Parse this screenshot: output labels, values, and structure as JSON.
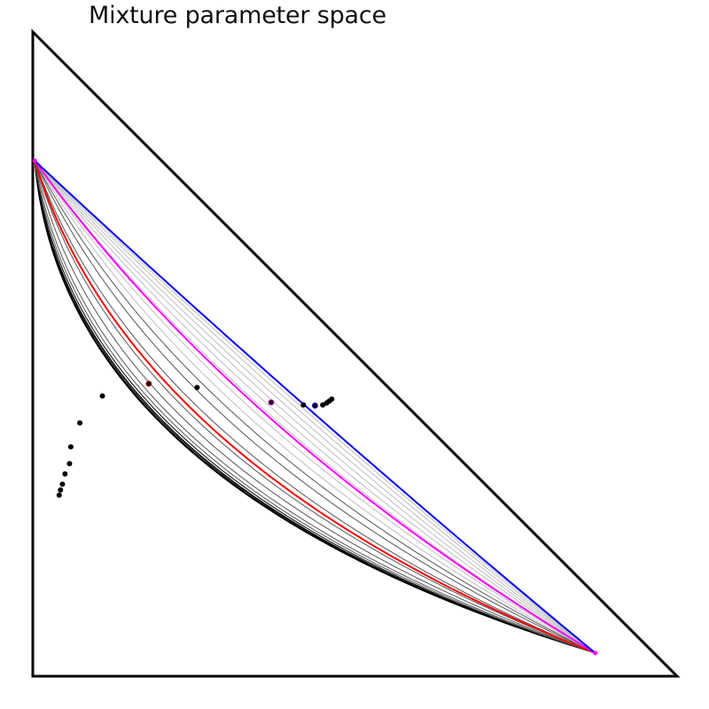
{
  "title": "Mixture parameter space",
  "chart_data": {
    "type": "line",
    "title": "Mixture parameter space",
    "xlabel": "",
    "ylabel": "",
    "xlim": [
      0,
      1
    ],
    "ylim": [
      0,
      1
    ],
    "grid": false,
    "legend": "none",
    "domain": "simplex (triangle with corners (0,0), (1,0), (0,1))",
    "endpoints": [
      [
        0.003,
        0.8
      ],
      [
        0.873,
        0.036
      ]
    ],
    "family": {
      "description": "curves joining the two endpoints, ordered from the bowed (lower-left) family to the nearly straight family",
      "curvature_parameters": [
        0.02,
        0.025,
        0.03,
        0.04,
        0.05,
        0.07,
        0.1,
        0.14,
        0.22,
        0.33,
        0.5,
        0.75,
        1.0,
        1.3,
        1.7,
        2.3,
        3.0,
        4.0,
        5.5,
        8.0,
        12.0
      ],
      "colors": {
        "dark": "#000000",
        "mid": "#555555",
        "light": "#bdbdbd"
      }
    },
    "series": [
      {
        "color": "#ff0000",
        "curvature": 0.4,
        "marker": [
          0.18,
          0.454
        ]
      },
      {
        "color": "#ff00ff",
        "curvature": 2.1,
        "marker": [
          0.37,
          0.425
        ]
      },
      {
        "color": "#0000ff",
        "curvature": 20.0,
        "marker": [
          0.438,
          0.42
        ]
      }
    ],
    "points": [
      [
        0.041,
        0.281
      ],
      [
        0.043,
        0.289
      ],
      [
        0.046,
        0.298
      ],
      [
        0.05,
        0.314
      ],
      [
        0.057,
        0.33
      ],
      [
        0.059,
        0.356
      ],
      [
        0.073,
        0.393
      ],
      [
        0.108,
        0.435
      ],
      [
        0.255,
        0.448
      ],
      [
        0.42,
        0.421
      ],
      [
        0.45,
        0.421
      ],
      [
        0.456,
        0.424
      ],
      [
        0.46,
        0.427
      ],
      [
        0.464,
        0.43
      ]
    ]
  }
}
